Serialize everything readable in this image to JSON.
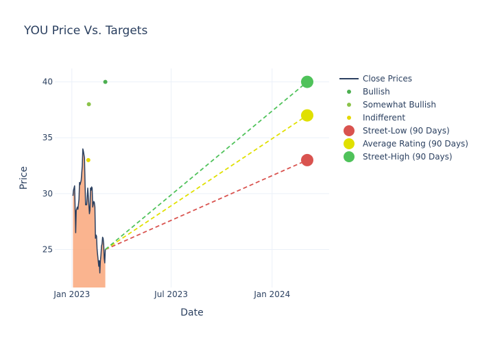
{
  "chart_data": {
    "type": "line",
    "title": "YOU Price Vs. Targets",
    "xlabel": "Date",
    "ylabel": "Price",
    "xlim": [
      "2022-12-01",
      "2024-04-14"
    ],
    "ylim": [
      21.6,
      41.2
    ],
    "x_ticks": [
      {
        "date": "2023-01-01",
        "label": "Jan 2023"
      },
      {
        "date": "2023-07-01",
        "label": "Jul 2023"
      },
      {
        "date": "2024-01-01",
        "label": "Jan 2024"
      }
    ],
    "y_ticks": [
      25,
      30,
      35,
      40
    ],
    "grid": true,
    "legend_position": "right",
    "colors": {
      "close": "#2a3f5f",
      "fill": "#f9a77b",
      "bullish": "#4caf50",
      "somewhat_bullish": "#8bc34a",
      "indifferent": "#e5d800",
      "street_low": "#d9534f",
      "average": "#e0e000",
      "street_high": "#4fc25a"
    },
    "series": [
      {
        "name": "Close Prices",
        "type": "line",
        "points": [
          [
            "2023-01-03",
            29.8
          ],
          [
            "2023-01-04",
            30.3
          ],
          [
            "2023-01-06",
            30.7
          ],
          [
            "2023-01-08",
            26.5
          ],
          [
            "2023-01-09",
            28.5
          ],
          [
            "2023-01-11",
            28.8
          ],
          [
            "2023-01-12",
            28.6
          ],
          [
            "2023-01-14",
            29.5
          ],
          [
            "2023-01-15",
            31.0
          ],
          [
            "2023-01-16",
            30.8
          ],
          [
            "2023-01-18",
            31.2
          ],
          [
            "2023-01-20",
            32.5
          ],
          [
            "2023-01-21",
            34.0
          ],
          [
            "2023-01-22",
            33.8
          ],
          [
            "2023-01-24",
            33.2
          ],
          [
            "2023-01-25",
            31.0
          ],
          [
            "2023-01-26",
            29.0
          ],
          [
            "2023-01-28",
            29.0
          ],
          [
            "2023-01-30",
            30.5
          ],
          [
            "2023-02-01",
            29.0
          ],
          [
            "2023-02-02",
            28.2
          ],
          [
            "2023-02-03",
            28.5
          ],
          [
            "2023-02-04",
            30.5
          ],
          [
            "2023-02-05",
            30.3
          ],
          [
            "2023-02-06",
            30.6
          ],
          [
            "2023-02-07",
            30.5
          ],
          [
            "2023-02-08",
            28.8
          ],
          [
            "2023-02-10",
            29.3
          ],
          [
            "2023-02-11",
            29.2
          ],
          [
            "2023-02-12",
            28.8
          ],
          [
            "2023-02-13",
            26.0
          ],
          [
            "2023-02-14",
            26.3
          ],
          [
            "2023-02-15",
            26.2
          ],
          [
            "2023-02-16",
            25.0
          ],
          [
            "2023-02-17",
            24.5
          ],
          [
            "2023-02-18",
            24.0
          ],
          [
            "2023-02-19",
            23.5
          ],
          [
            "2023-02-20",
            24.0
          ],
          [
            "2023-02-21",
            22.9
          ],
          [
            "2023-02-22",
            24.0
          ],
          [
            "2023-02-23",
            24.5
          ],
          [
            "2023-02-24",
            25.3
          ],
          [
            "2023-02-25",
            25.5
          ],
          [
            "2023-02-26",
            26.1
          ],
          [
            "2023-02-27",
            26.0
          ],
          [
            "2023-02-28",
            25.5
          ],
          [
            "2023-03-01",
            24.2
          ],
          [
            "2023-03-02",
            23.8
          ],
          [
            "2023-03-03",
            25.0
          ]
        ]
      },
      {
        "name": "Bullish",
        "type": "scatter",
        "points": [
          [
            "2023-03-03",
            40.0
          ]
        ]
      },
      {
        "name": "Somewhat Bullish",
        "type": "scatter",
        "points": [
          [
            "2023-02-01",
            38.0
          ]
        ]
      },
      {
        "name": "Indifferent",
        "type": "scatter",
        "points": [
          [
            "2023-01-31",
            33.0
          ]
        ]
      },
      {
        "name": "Street-Low (90 Days)",
        "type": "target",
        "points": [
          [
            "2023-03-03",
            25.0
          ],
          [
            "2024-03-05",
            33.0
          ]
        ]
      },
      {
        "name": "Average Rating (90 Days)",
        "type": "target",
        "points": [
          [
            "2023-03-03",
            25.0
          ],
          [
            "2024-03-05",
            37.0
          ]
        ]
      },
      {
        "name": "Street-High (90 Days)",
        "type": "target",
        "points": [
          [
            "2023-03-03",
            25.0
          ],
          [
            "2024-03-05",
            40.0
          ]
        ]
      }
    ]
  }
}
